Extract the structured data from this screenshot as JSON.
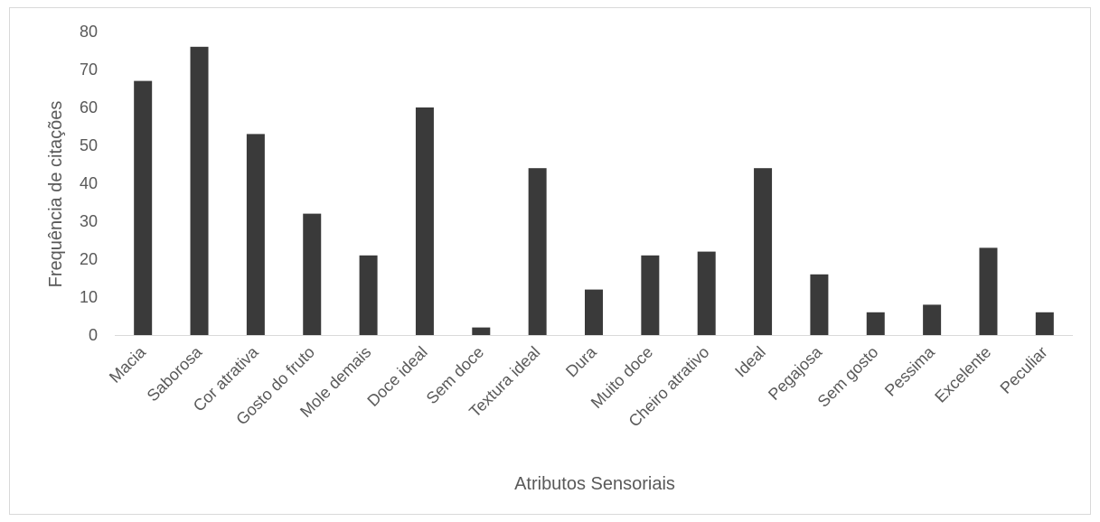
{
  "chart_data": {
    "type": "bar",
    "title": "",
    "xlabel": "Atributos Sensoriais",
    "ylabel": "Frequência de citações",
    "ylim": [
      0,
      80
    ],
    "yticks": [
      0,
      10,
      20,
      30,
      40,
      50,
      60,
      70,
      80
    ],
    "grid": false,
    "bar_color": "#3a3a3a",
    "categories": [
      "Macia",
      "Saborosa",
      "Cor atrativa",
      "Gosto do fruto",
      "Mole demais",
      "Doce ideal",
      "Sem doce",
      "Textura ideal",
      "Dura",
      "Muito doce",
      "Cheiro atrativo",
      "Ideal",
      "Pegajosa",
      "Sem gosto",
      "Pessima",
      "Excelente",
      "Peculiar"
    ],
    "values": [
      67,
      76,
      53,
      32,
      21,
      60,
      2,
      44,
      12,
      21,
      22,
      44,
      16,
      6,
      8,
      23,
      6
    ]
  }
}
